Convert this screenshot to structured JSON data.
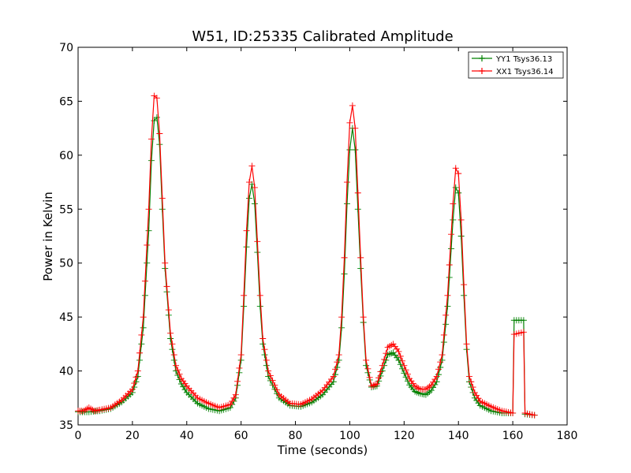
{
  "chart_data": {
    "type": "line",
    "title": "W51, ID:25335 Calibrated Amplitude",
    "xlabel": "Time (seconds)",
    "ylabel": "Power in Kelvin",
    "xlim": [
      0,
      180
    ],
    "ylim": [
      35,
      70
    ],
    "xticks": [
      "0",
      "20",
      "40",
      "60",
      "80",
      "100",
      "120",
      "140",
      "160",
      "180"
    ],
    "yticks": [
      "35",
      "40",
      "45",
      "50",
      "55",
      "60",
      "65",
      "70"
    ],
    "grid": false,
    "legend_position": "top-right",
    "marker": "+",
    "series": [
      {
        "name": "YY1 Tsys36.13",
        "color": "#008000",
        "points": [
          [
            0,
            36.2
          ],
          [
            4,
            36.2
          ],
          [
            8,
            36.3
          ],
          [
            12,
            36.5
          ],
          [
            16,
            37.1
          ],
          [
            20,
            38.0
          ],
          [
            22,
            39.5
          ],
          [
            24,
            44.0
          ],
          [
            26,
            53.0
          ],
          [
            27,
            59.5
          ],
          [
            28,
            63.2
          ],
          [
            29,
            63.5
          ],
          [
            30,
            61.0
          ],
          [
            31,
            55.0
          ],
          [
            32,
            49.5
          ],
          [
            34,
            43.0
          ],
          [
            36,
            40.0
          ],
          [
            38,
            38.8
          ],
          [
            40,
            38.0
          ],
          [
            44,
            37.0
          ],
          [
            48,
            36.5
          ],
          [
            52,
            36.3
          ],
          [
            56,
            36.6
          ],
          [
            58,
            37.5
          ],
          [
            60,
            41.0
          ],
          [
            61,
            46.0
          ],
          [
            62,
            51.5
          ],
          [
            63,
            56.0
          ],
          [
            64,
            57.3
          ],
          [
            65,
            55.5
          ],
          [
            66,
            51.0
          ],
          [
            67,
            46.0
          ],
          [
            68,
            42.5
          ],
          [
            70,
            39.5
          ],
          [
            74,
            37.5
          ],
          [
            78,
            36.8
          ],
          [
            82,
            36.7
          ],
          [
            86,
            37.1
          ],
          [
            90,
            37.8
          ],
          [
            94,
            39.0
          ],
          [
            96,
            41.0
          ],
          [
            97,
            44.0
          ],
          [
            98,
            49.0
          ],
          [
            99,
            55.5
          ],
          [
            100,
            60.5
          ],
          [
            101,
            62.5
          ],
          [
            102,
            60.5
          ],
          [
            103,
            55.0
          ],
          [
            104,
            49.5
          ],
          [
            105,
            44.5
          ],
          [
            106,
            40.5
          ],
          [
            108,
            38.5
          ],
          [
            110,
            38.6
          ],
          [
            112,
            40.0
          ],
          [
            114,
            41.5
          ],
          [
            116,
            41.7
          ],
          [
            118,
            41.0
          ],
          [
            120,
            39.8
          ],
          [
            122,
            38.7
          ],
          [
            124,
            38.1
          ],
          [
            126,
            37.9
          ],
          [
            128,
            37.8
          ],
          [
            130,
            38.2
          ],
          [
            132,
            39.0
          ],
          [
            134,
            41.0
          ],
          [
            136,
            46.0
          ],
          [
            138,
            54.0
          ],
          [
            139,
            57.0
          ],
          [
            140,
            56.5
          ],
          [
            141,
            52.5
          ],
          [
            142,
            47.0
          ],
          [
            143,
            42.0
          ],
          [
            144,
            39.0
          ],
          [
            146,
            37.5
          ],
          [
            148,
            36.8
          ],
          [
            152,
            36.3
          ],
          [
            156,
            36.1
          ],
          [
            160,
            36.1
          ],
          [
            160.5,
            44.7
          ],
          [
            164,
            44.7
          ],
          [
            164.5,
            36.0
          ],
          [
            168,
            35.9
          ]
        ]
      },
      {
        "name": "XX1 Tsys36.14",
        "color": "#ff0000",
        "points": [
          [
            0,
            36.3
          ],
          [
            2,
            36.3
          ],
          [
            4,
            36.6
          ],
          [
            6,
            36.3
          ],
          [
            8,
            36.4
          ],
          [
            12,
            36.6
          ],
          [
            16,
            37.3
          ],
          [
            20,
            38.3
          ],
          [
            22,
            40.0
          ],
          [
            24,
            45.0
          ],
          [
            26,
            55.0
          ],
          [
            27,
            61.5
          ],
          [
            28,
            65.5
          ],
          [
            29,
            65.3
          ],
          [
            30,
            62.0
          ],
          [
            31,
            56.0
          ],
          [
            32,
            50.0
          ],
          [
            34,
            43.5
          ],
          [
            36,
            40.5
          ],
          [
            38,
            39.3
          ],
          [
            40,
            38.6
          ],
          [
            44,
            37.5
          ],
          [
            48,
            37.0
          ],
          [
            52,
            36.6
          ],
          [
            56,
            36.9
          ],
          [
            58,
            37.8
          ],
          [
            60,
            41.5
          ],
          [
            61,
            47.0
          ],
          [
            62,
            53.0
          ],
          [
            63,
            57.5
          ],
          [
            64,
            59.0
          ],
          [
            65,
            57.0
          ],
          [
            66,
            52.0
          ],
          [
            67,
            47.0
          ],
          [
            68,
            43.0
          ],
          [
            70,
            40.0
          ],
          [
            74,
            37.8
          ],
          [
            78,
            37.0
          ],
          [
            82,
            36.9
          ],
          [
            86,
            37.4
          ],
          [
            90,
            38.2
          ],
          [
            94,
            39.5
          ],
          [
            96,
            41.5
          ],
          [
            97,
            45.0
          ],
          [
            98,
            50.5
          ],
          [
            99,
            57.5
          ],
          [
            100,
            63.0
          ],
          [
            101,
            64.6
          ],
          [
            102,
            62.5
          ],
          [
            103,
            56.5
          ],
          [
            104,
            50.5
          ],
          [
            105,
            45.0
          ],
          [
            106,
            41.0
          ],
          [
            108,
            38.6
          ],
          [
            110,
            38.8
          ],
          [
            112,
            40.5
          ],
          [
            114,
            42.2
          ],
          [
            116,
            42.5
          ],
          [
            118,
            41.8
          ],
          [
            120,
            40.5
          ],
          [
            122,
            39.3
          ],
          [
            124,
            38.6
          ],
          [
            126,
            38.3
          ],
          [
            128,
            38.3
          ],
          [
            130,
            38.7
          ],
          [
            132,
            39.5
          ],
          [
            134,
            41.5
          ],
          [
            136,
            47.0
          ],
          [
            138,
            55.5
          ],
          [
            139,
            58.8
          ],
          [
            140,
            58.3
          ],
          [
            141,
            54.0
          ],
          [
            142,
            48.0
          ],
          [
            143,
            42.5
          ],
          [
            144,
            39.5
          ],
          [
            146,
            38.0
          ],
          [
            148,
            37.2
          ],
          [
            152,
            36.7
          ],
          [
            156,
            36.3
          ],
          [
            160,
            36.1
          ],
          [
            160.5,
            43.4
          ],
          [
            164,
            43.6
          ],
          [
            164.5,
            36.1
          ],
          [
            168,
            35.9
          ]
        ]
      }
    ]
  }
}
